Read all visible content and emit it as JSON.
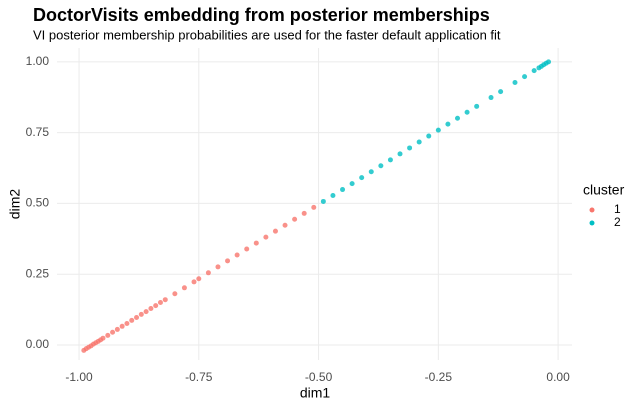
{
  "chart_data": {
    "type": "scatter",
    "title": "DoctorVisits embedding from posterior memberships",
    "subtitle": "VI posterior membership probabilities are used for the faster default application fit",
    "x_label": "dim1",
    "y_label": "dim2",
    "legend_title": "cluster",
    "legend": "right",
    "grid": true,
    "xlim": [
      -1.046,
      0.029
    ],
    "ylim": [
      -0.053,
      1.049
    ],
    "xticks": [
      {
        "value": -1,
        "label": "-1.00"
      },
      {
        "value": -0.75,
        "label": "-0.75"
      },
      {
        "value": -0.5,
        "label": "-0.50"
      },
      {
        "value": -0.25,
        "label": "-0.25"
      },
      {
        "value": 0,
        "label": "0.00"
      }
    ],
    "yticks": [
      {
        "value": 0,
        "label": "0.00"
      },
      {
        "value": 0.25,
        "label": "0.25"
      },
      {
        "value": 0.5,
        "label": "0.50"
      },
      {
        "value": 0.75,
        "label": "0.75"
      },
      {
        "value": 1,
        "label": "1.00"
      }
    ],
    "series": [
      {
        "name": "1",
        "color": "#F8766D",
        "x": [
          -0.99,
          -0.985,
          -0.98,
          -0.975,
          -0.97,
          -0.965,
          -0.96,
          -0.955,
          -0.95,
          -0.94,
          -0.93,
          -0.92,
          -0.91,
          -0.9,
          -0.89,
          -0.88,
          -0.87,
          -0.86,
          -0.85,
          -0.84,
          -0.83,
          -0.82,
          -0.8,
          -0.78,
          -0.76,
          -0.75,
          -0.73,
          -0.71,
          -0.69,
          -0.67,
          -0.65,
          -0.63,
          -0.61,
          -0.59,
          -0.57,
          -0.55,
          -0.53,
          -0.51
        ],
        "y": [
          -0.019,
          -0.013,
          -0.008,
          -0.003,
          0.003,
          0.008,
          0.013,
          0.018,
          0.024,
          0.034,
          0.045,
          0.055,
          0.066,
          0.076,
          0.087,
          0.097,
          0.108,
          0.118,
          0.129,
          0.139,
          0.15,
          0.16,
          0.181,
          0.202,
          0.223,
          0.234,
          0.255,
          0.276,
          0.297,
          0.318,
          0.339,
          0.36,
          0.381,
          0.402,
          0.423,
          0.444,
          0.465,
          0.486
        ]
      },
      {
        "name": "2",
        "color": "#00BFC4",
        "x": [
          -0.49,
          -0.47,
          -0.45,
          -0.43,
          -0.41,
          -0.39,
          -0.37,
          -0.35,
          -0.33,
          -0.31,
          -0.29,
          -0.27,
          -0.25,
          -0.23,
          -0.21,
          -0.19,
          -0.17,
          -0.14,
          -0.12,
          -0.09,
          -0.07,
          -0.05,
          -0.04,
          -0.035,
          -0.03,
          -0.025,
          -0.02
        ],
        "y": [
          0.507,
          0.528,
          0.549,
          0.57,
          0.591,
          0.612,
          0.633,
          0.654,
          0.675,
          0.696,
          0.717,
          0.738,
          0.759,
          0.78,
          0.801,
          0.822,
          0.843,
          0.874,
          0.895,
          0.927,
          0.948,
          0.969,
          0.979,
          0.984,
          0.99,
          0.995,
          1.0
        ]
      }
    ]
  }
}
